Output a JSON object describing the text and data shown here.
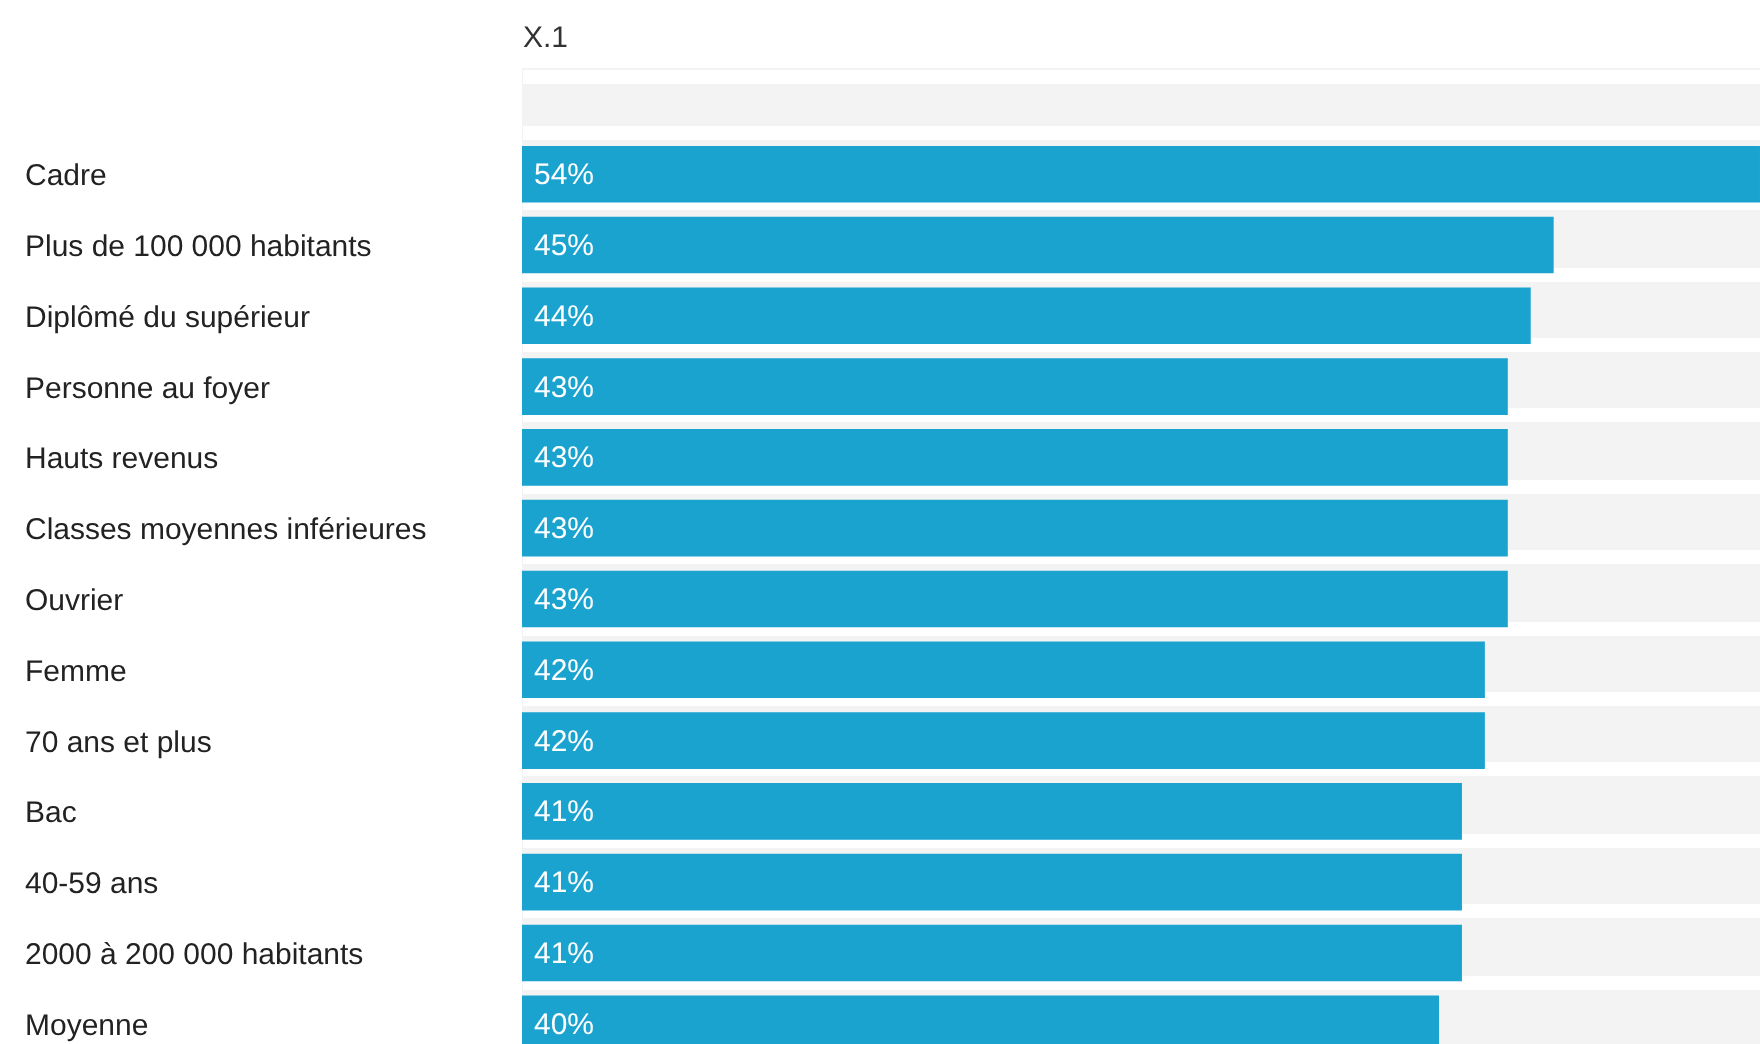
{
  "chart_data": {
    "type": "bar",
    "orientation": "horizontal",
    "xlabel": "X.1",
    "categories": [
      null,
      "Cadre",
      "Plus de 100 000 habitants",
      "Diplômé du supérieur",
      "Personne au foyer",
      "Hauts revenus",
      "Classes moyennes inférieures",
      "Ouvrier",
      "Femme",
      "70 ans et plus",
      "Bac",
      "40-59 ans",
      "2000 à 200 000 habitants",
      "Moyenne"
    ],
    "values": [
      null,
      54,
      45,
      44,
      43,
      43,
      43,
      43,
      42,
      42,
      41,
      41,
      41,
      40
    ],
    "value_labels": [
      null,
      "54%",
      "45%",
      "44%",
      "43%",
      "43%",
      "43%",
      "43%",
      "42%",
      "42%",
      "41%",
      "41%",
      "41%",
      "40%"
    ],
    "color": "#1ba3d0",
    "xlim": [
      0,
      54
    ],
    "grid": "y",
    "tick_labels": "y"
  }
}
